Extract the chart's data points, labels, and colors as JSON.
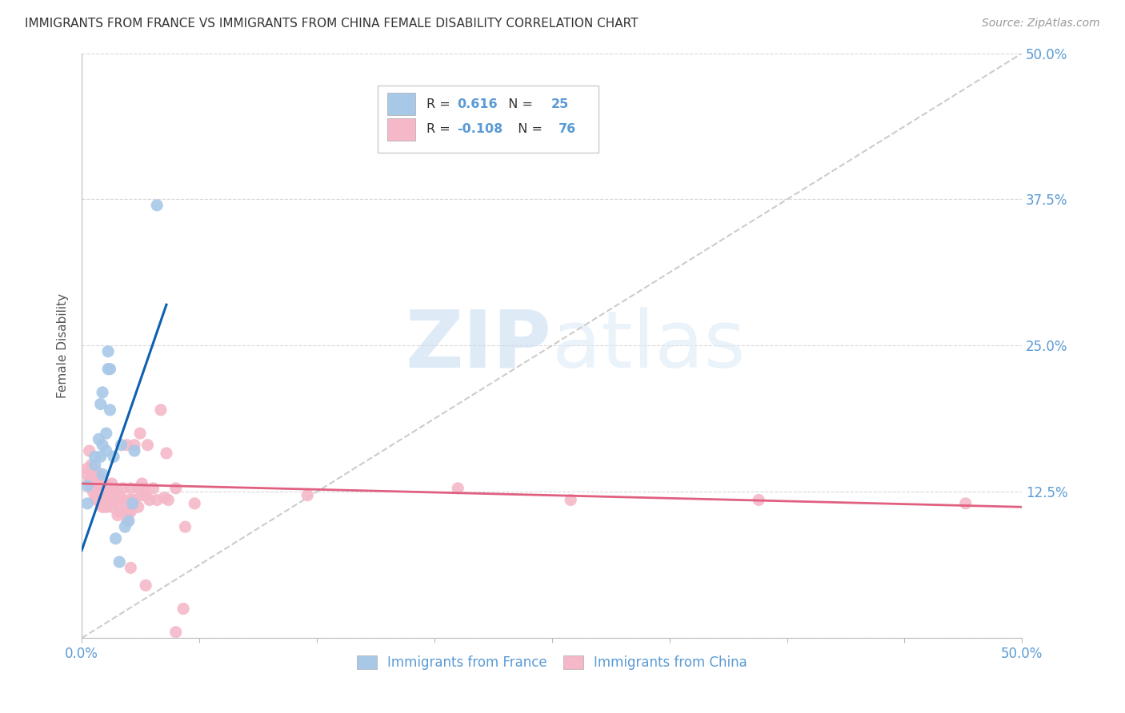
{
  "title": "IMMIGRANTS FROM FRANCE VS IMMIGRANTS FROM CHINA FEMALE DISABILITY CORRELATION CHART",
  "source": "Source: ZipAtlas.com",
  "ylabel": "Female Disability",
  "xlim": [
    0.0,
    0.5
  ],
  "ylim": [
    0.0,
    0.5
  ],
  "legend_france_R": "0.616",
  "legend_france_N": "25",
  "legend_china_R": "-0.108",
  "legend_china_N": "76",
  "legend_xlabel_france": "Immigrants from France",
  "legend_xlabel_china": "Immigrants from China",
  "france_color": "#a8c8e8",
  "china_color": "#f4b8c8",
  "france_line_color": "#1060b0",
  "china_line_color": "#e06080",
  "diagonal_color": "#cccccc",
  "watermark_zip": "ZIP",
  "watermark_atlas": "atlas",
  "background_color": "#ffffff",
  "tick_color": "#5b9bd5",
  "france_scatter": [
    [
      0.003,
      0.13
    ],
    [
      0.007,
      0.155
    ],
    [
      0.007,
      0.148
    ],
    [
      0.009,
      0.17
    ],
    [
      0.01,
      0.2
    ],
    [
      0.01,
      0.155
    ],
    [
      0.011,
      0.21
    ],
    [
      0.011,
      0.165
    ],
    [
      0.011,
      0.14
    ],
    [
      0.013,
      0.175
    ],
    [
      0.013,
      0.16
    ],
    [
      0.014,
      0.245
    ],
    [
      0.014,
      0.23
    ],
    [
      0.015,
      0.195
    ],
    [
      0.015,
      0.23
    ],
    [
      0.017,
      0.155
    ],
    [
      0.018,
      0.085
    ],
    [
      0.02,
      0.065
    ],
    [
      0.021,
      0.165
    ],
    [
      0.023,
      0.095
    ],
    [
      0.025,
      0.1
    ],
    [
      0.027,
      0.115
    ],
    [
      0.028,
      0.16
    ],
    [
      0.04,
      0.37
    ],
    [
      0.003,
      0.115
    ]
  ],
  "china_scatter": [
    [
      0.003,
      0.145
    ],
    [
      0.003,
      0.14
    ],
    [
      0.004,
      0.16
    ],
    [
      0.004,
      0.135
    ],
    [
      0.005,
      0.148
    ],
    [
      0.005,
      0.13
    ],
    [
      0.006,
      0.14
    ],
    [
      0.006,
      0.125
    ],
    [
      0.007,
      0.135
    ],
    [
      0.007,
      0.12
    ],
    [
      0.008,
      0.142
    ],
    [
      0.008,
      0.132
    ],
    [
      0.008,
      0.118
    ],
    [
      0.009,
      0.128
    ],
    [
      0.009,
      0.138
    ],
    [
      0.01,
      0.125
    ],
    [
      0.01,
      0.115
    ],
    [
      0.011,
      0.13
    ],
    [
      0.011,
      0.112
    ],
    [
      0.012,
      0.128
    ],
    [
      0.012,
      0.118
    ],
    [
      0.013,
      0.125
    ],
    [
      0.013,
      0.112
    ],
    [
      0.014,
      0.13
    ],
    [
      0.015,
      0.118
    ],
    [
      0.015,
      0.128
    ],
    [
      0.016,
      0.132
    ],
    [
      0.016,
      0.112
    ],
    [
      0.017,
      0.122
    ],
    [
      0.017,
      0.116
    ],
    [
      0.018,
      0.128
    ],
    [
      0.019,
      0.118
    ],
    [
      0.019,
      0.105
    ],
    [
      0.02,
      0.122
    ],
    [
      0.02,
      0.108
    ],
    [
      0.021,
      0.118
    ],
    [
      0.022,
      0.128
    ],
    [
      0.022,
      0.118
    ],
    [
      0.023,
      0.112
    ],
    [
      0.024,
      0.165
    ],
    [
      0.024,
      0.1
    ],
    [
      0.025,
      0.118
    ],
    [
      0.025,
      0.108
    ],
    [
      0.026,
      0.128
    ],
    [
      0.026,
      0.108
    ],
    [
      0.027,
      0.118
    ],
    [
      0.027,
      0.114
    ],
    [
      0.028,
      0.165
    ],
    [
      0.028,
      0.118
    ],
    [
      0.03,
      0.128
    ],
    [
      0.03,
      0.112
    ],
    [
      0.031,
      0.175
    ],
    [
      0.032,
      0.132
    ],
    [
      0.032,
      0.122
    ],
    [
      0.033,
      0.128
    ],
    [
      0.034,
      0.122
    ],
    [
      0.035,
      0.165
    ],
    [
      0.036,
      0.118
    ],
    [
      0.038,
      0.128
    ],
    [
      0.04,
      0.118
    ],
    [
      0.042,
      0.195
    ],
    [
      0.044,
      0.12
    ],
    [
      0.045,
      0.158
    ],
    [
      0.046,
      0.118
    ],
    [
      0.05,
      0.128
    ],
    [
      0.055,
      0.095
    ],
    [
      0.06,
      0.115
    ],
    [
      0.026,
      0.06
    ],
    [
      0.034,
      0.045
    ],
    [
      0.054,
      0.025
    ],
    [
      0.05,
      0.005
    ],
    [
      0.36,
      0.118
    ],
    [
      0.47,
      0.115
    ],
    [
      0.12,
      0.122
    ],
    [
      0.2,
      0.128
    ],
    [
      0.26,
      0.118
    ]
  ],
  "france_trend_x": [
    0.0,
    0.045
  ],
  "france_trend_y": [
    0.075,
    0.285
  ],
  "china_trend_x": [
    0.0,
    0.5
  ],
  "china_trend_y": [
    0.132,
    0.112
  ]
}
